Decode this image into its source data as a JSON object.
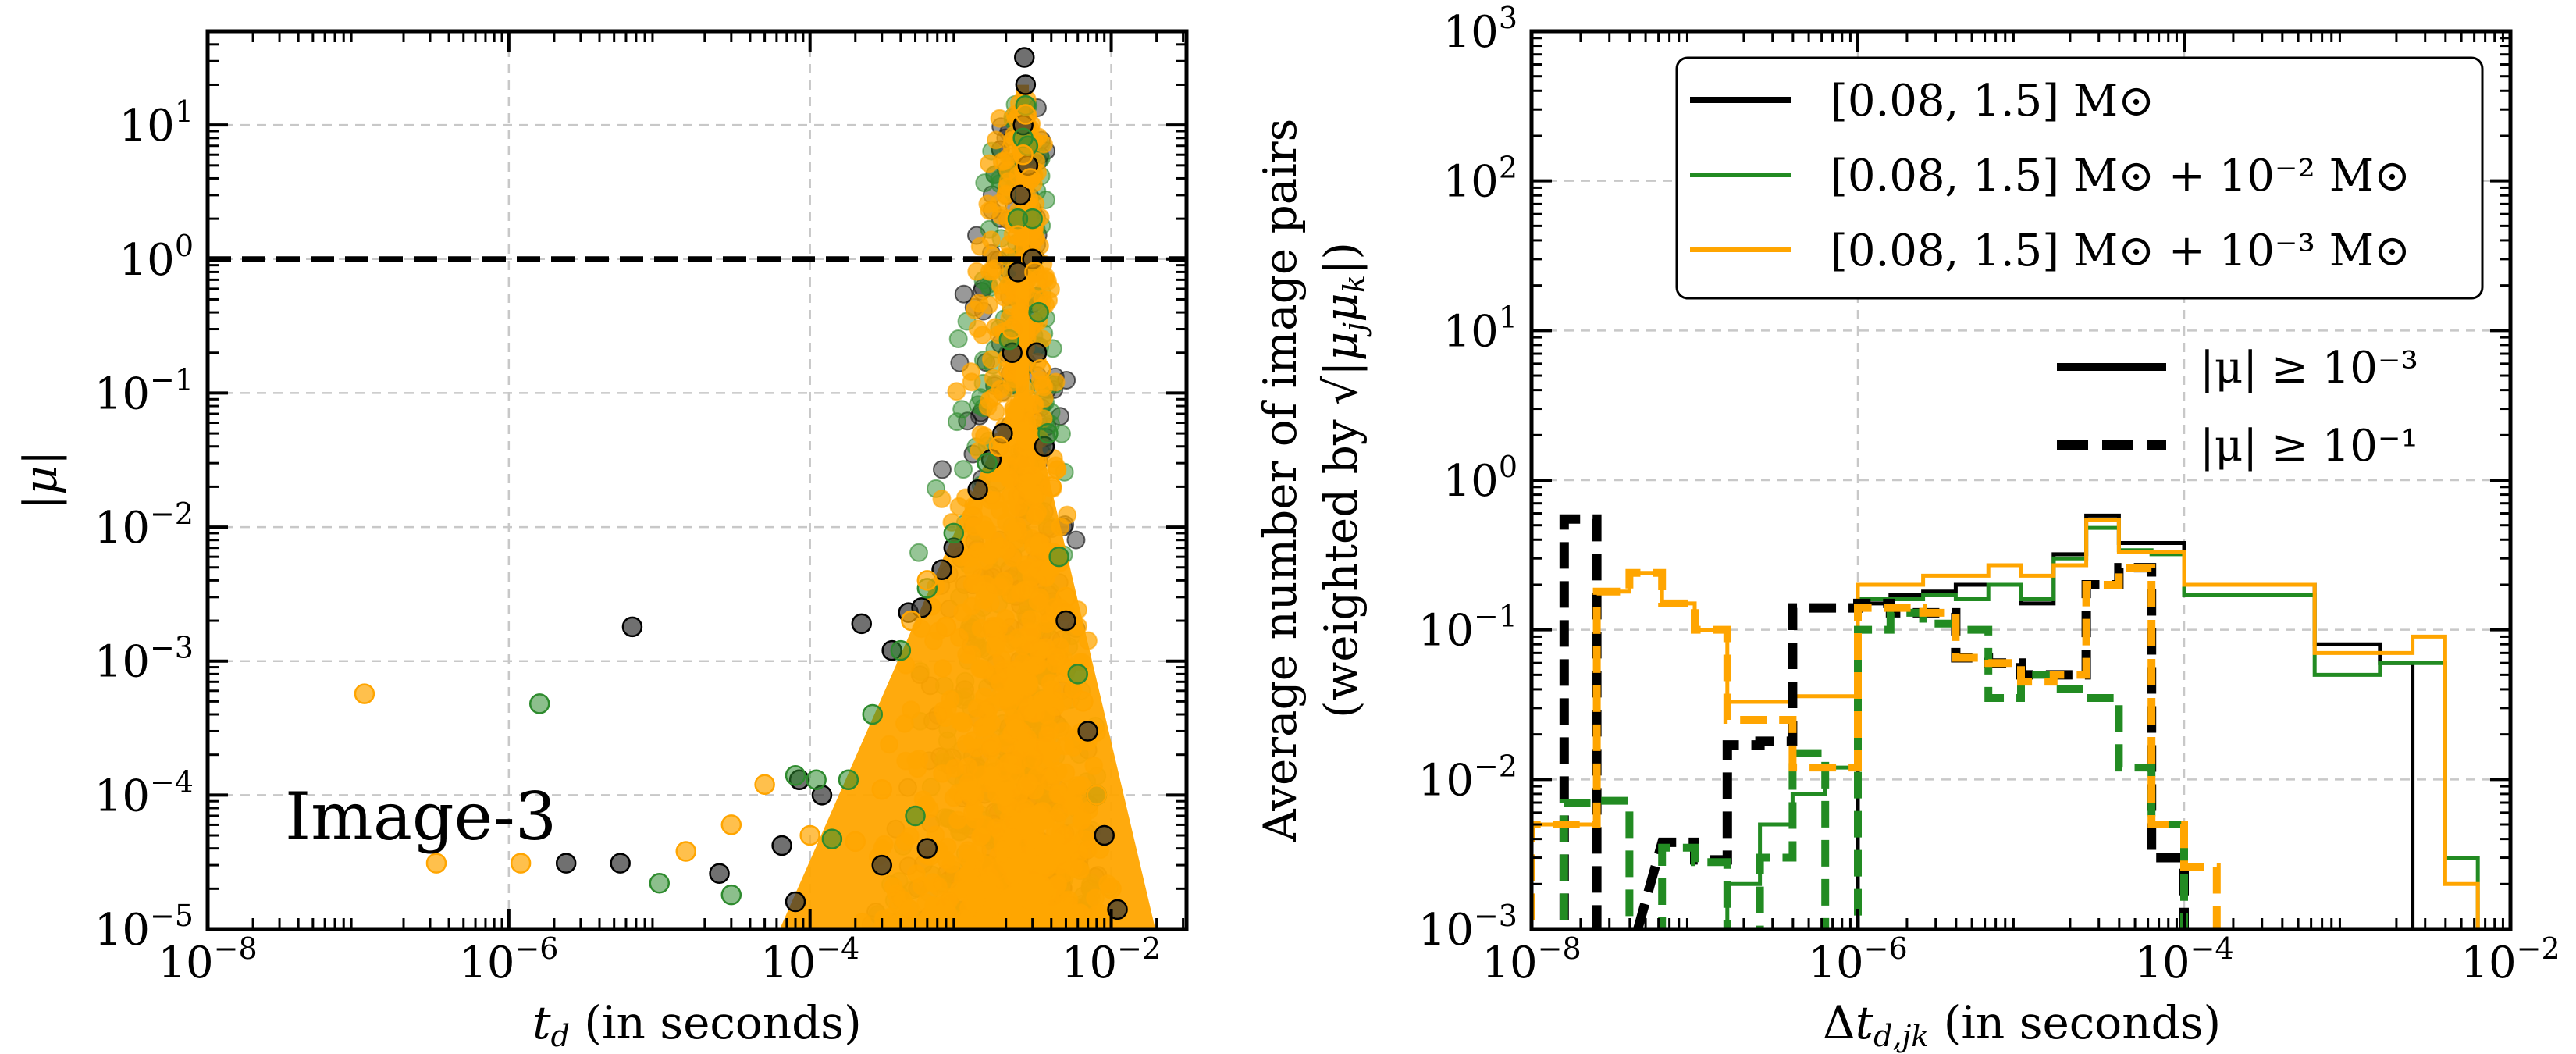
{
  "chart_data": [
    {
      "type": "scatter",
      "panel": "left",
      "xlabel": "t_d (in seconds)",
      "ylabel": "|μ|",
      "xscale": "log",
      "yscale": "log",
      "xlim_exp": [
        -8,
        -1.5
      ],
      "ylim_exp": [
        -5,
        1.7
      ],
      "xticks": [
        {
          "exp": -8,
          "base": "10",
          "pow": "−8"
        },
        {
          "exp": -6,
          "base": "10",
          "pow": "−6"
        },
        {
          "exp": -4,
          "base": "10",
          "pow": "−4"
        },
        {
          "exp": -2,
          "base": "10",
          "pow": "−2"
        }
      ],
      "yticks": [
        {
          "exp": -5,
          "base": "10",
          "pow": "−5"
        },
        {
          "exp": -4,
          "base": "10",
          "pow": "−4"
        },
        {
          "exp": -3,
          "base": "10",
          "pow": "−3"
        },
        {
          "exp": -2,
          "base": "10",
          "pow": "−2"
        },
        {
          "exp": -1,
          "base": "10",
          "pow": "−1"
        },
        {
          "exp": 0,
          "base": "10",
          "pow": "0"
        },
        {
          "exp": 1,
          "base": "10",
          "pow": "1"
        }
      ],
      "grid": true,
      "hline": {
        "y": 1,
        "style": "dashed",
        "color": "#000000"
      },
      "annotation": "Image-3",
      "series": [
        {
          "name": "[0.08, 1.5] M⊙",
          "color": "#333333",
          "points": [
            [
              6.6e-06,
              0.0018
            ],
            [
              2.4e-06,
              3.1e-05
            ],
            [
              5.5e-06,
              3.1e-05
            ],
            [
              2.5e-05,
              2.6e-05
            ],
            [
              6.5e-05,
              4.2e-05
            ],
            [
              8.5e-05,
              0.00013
            ],
            [
              0.00012,
              0.0001
            ],
            [
              8e-05,
              1.6e-05
            ],
            [
              0.00022,
              0.0019
            ],
            [
              0.00035,
              0.0012
            ],
            [
              0.00045,
              0.0023
            ],
            [
              0.00055,
              0.0025
            ],
            [
              0.00075,
              0.0048
            ],
            [
              0.0009,
              0.007
            ],
            [
              0.0013,
              0.019
            ],
            [
              0.0016,
              0.032
            ],
            [
              0.0019,
              0.05
            ],
            [
              0.0022,
              0.2
            ],
            [
              0.0024,
              0.8
            ],
            [
              0.0025,
              3
            ],
            [
              0.0026,
              10
            ],
            [
              0.00265,
              32
            ],
            [
              0.0027,
              20
            ],
            [
              0.0028,
              5
            ],
            [
              0.003,
              1
            ],
            [
              0.0032,
              0.2
            ],
            [
              0.0036,
              0.04
            ],
            [
              0.005,
              0.002
            ],
            [
              0.007,
              0.0003
            ],
            [
              0.009,
              5e-05
            ],
            [
              0.011,
              1.4e-05
            ],
            [
              0.0006,
              4e-05
            ],
            [
              0.0003,
              3e-05
            ]
          ]
        },
        {
          "name": "[0.08, 1.5] M⊙ + 10⁻² M⊙",
          "color": "#2e8b2e",
          "points": [
            [
              1.6e-06,
              0.00048
            ],
            [
              1e-05,
              2.2e-05
            ],
            [
              8e-05,
              0.00014
            ],
            [
              0.00011,
              0.00013
            ],
            [
              0.00014,
              4.7e-05
            ],
            [
              0.00018,
              0.00013
            ],
            [
              0.00026,
              0.0004
            ],
            [
              0.0004,
              0.0012
            ],
            [
              0.0006,
              0.0035
            ],
            [
              0.0009,
              0.009
            ],
            [
              0.0015,
              0.03
            ],
            [
              0.0021,
              0.25
            ],
            [
              0.0024,
              2
            ],
            [
              0.0026,
              8
            ],
            [
              0.0027,
              14
            ],
            [
              0.0028,
              7
            ],
            [
              0.003,
              2
            ],
            [
              0.0033,
              0.4
            ],
            [
              0.0038,
              0.05
            ],
            [
              0.0045,
              0.006
            ],
            [
              0.006,
              0.0008
            ],
            [
              0.008,
              0.0001
            ],
            [
              3e-05,
              1.8e-05
            ],
            [
              0.0005,
              7e-05
            ]
          ]
        },
        {
          "name": "[0.08, 1.5] M⊙ + 10⁻³ M⊙",
          "color": "#ffa500",
          "points": [
            [
              1.1e-07,
              0.00057
            ],
            [
              3.3e-07,
              3.1e-05
            ],
            [
              1.2e-06,
              3.1e-05
            ],
            [
              1.5e-05,
              3.8e-05
            ],
            [
              3e-05,
              6e-05
            ],
            [
              5e-05,
              0.00012
            ],
            [
              0.0001,
              5e-05
            ],
            [
              0.0002,
              4.5e-05
            ],
            [
              0.0003,
              0.00011
            ],
            [
              0.00047,
              0.002
            ],
            [
              0.0006,
              0.004
            ],
            [
              0.0008,
              0.0018
            ],
            [
              0.0012,
              0.012
            ],
            [
              0.0018,
              0.04
            ],
            [
              0.0022,
              0.3
            ],
            [
              0.0024,
              1.5
            ],
            [
              0.0026,
              6
            ],
            [
              0.0027,
              12
            ],
            [
              0.0029,
              4
            ],
            [
              0.0031,
              0.8
            ],
            [
              0.0034,
              0.15
            ],
            [
              0.004,
              0.02
            ],
            [
              0.005,
              0.003
            ],
            [
              0.0065,
              0.0005
            ],
            [
              0.008,
              0.0001
            ],
            [
              0.01,
              2e-05
            ]
          ]
        }
      ]
    },
    {
      "type": "histogram-step",
      "panel": "right",
      "xlabel": "Δt_{d,jk} (in seconds)",
      "ylabel_line1": "Average number of image pairs",
      "ylabel_line2": "(weighted by √|μ_j μ_k|)",
      "xscale": "log",
      "yscale": "log",
      "xlim_exp": [
        -8,
        -2
      ],
      "ylim_exp": [
        -3,
        3
      ],
      "xticks": [
        {
          "exp": -8,
          "base": "10",
          "pow": "−8"
        },
        {
          "exp": -6,
          "base": "10",
          "pow": "−6"
        },
        {
          "exp": -4,
          "base": "10",
          "pow": "−4"
        },
        {
          "exp": -2,
          "base": "10",
          "pow": "−2"
        }
      ],
      "yticks": [
        {
          "exp": -3,
          "base": "10",
          "pow": "−3"
        },
        {
          "exp": -2,
          "base": "10",
          "pow": "−2"
        },
        {
          "exp": -1,
          "base": "10",
          "pow": "−1"
        },
        {
          "exp": 0,
          "base": "10",
          "pow": "0"
        },
        {
          "exp": 1,
          "base": "10",
          "pow": "1"
        },
        {
          "exp": 2,
          "base": "10",
          "pow": "2"
        },
        {
          "exp": 3,
          "base": "10",
          "pow": "3"
        }
      ],
      "grid": true,
      "bin_edges_exp": [
        -8.0,
        -7.8,
        -7.6,
        -7.4,
        -7.2,
        -7.0,
        -6.8,
        -6.6,
        -6.4,
        -6.2,
        -6.0,
        -5.8,
        -5.6,
        -5.4,
        -5.2,
        -5.0,
        -4.8,
        -4.6,
        -4.4,
        -4.2,
        -4.0,
        -3.8,
        -3.6,
        -3.4,
        -3.2,
        -3.0,
        -2.8,
        -2.6,
        -2.4,
        -2.2,
        -2.0
      ],
      "legend_colors": [
        {
          "label_main": "[0.08, 1.5] M⊙",
          "label_extra": "",
          "color": "#000000"
        },
        {
          "label_main": "[0.08, 1.5] M⊙",
          "label_extra": " + 10⁻² M⊙",
          "color": "#228b22"
        },
        {
          "label_main": "[0.08, 1.5] M⊙",
          "label_extra": " + 10⁻³ M⊙",
          "color": "#ffa500"
        }
      ],
      "legend_styles": [
        {
          "label": "|μ| ≥ 10⁻³",
          "style": "solid"
        },
        {
          "label": "|μ| ≥ 10⁻¹",
          "style": "dashed"
        }
      ],
      "series": [
        {
          "name": "black |μ|≥1e-3",
          "color": "#000000",
          "style": "solid",
          "width": 5,
          "values": [
            null,
            null,
            null,
            null,
            null,
            null,
            null,
            null,
            null,
            null,
            0.15,
            0.17,
            0.18,
            0.2,
            0.2,
            0.15,
            0.32,
            0.58,
            0.38,
            0.38,
            0.2,
            0.2,
            0.2,
            0.2,
            0.08,
            0.08,
            0.06,
            null,
            null,
            null
          ]
        },
        {
          "name": "green |μ|≥1e-3",
          "color": "#228b22",
          "style": "solid",
          "width": 5,
          "values": [
            null,
            null,
            null,
            null,
            null,
            null,
            0.002,
            0.005,
            0.008,
            0.012,
            0.16,
            0.16,
            0.17,
            0.16,
            0.2,
            0.16,
            0.3,
            0.48,
            0.34,
            0.32,
            0.17,
            0.17,
            0.17,
            0.17,
            0.05,
            0.05,
            0.06,
            0.06,
            0.003,
            null
          ]
        },
        {
          "name": "orange |μ|≥1e-3",
          "color": "#ffa500",
          "style": "solid",
          "width": 5,
          "values": [
            0.005,
            0.005,
            0.18,
            0.24,
            0.15,
            0.1,
            0.033,
            0.033,
            0.036,
            0.036,
            0.2,
            0.2,
            0.23,
            0.23,
            0.27,
            0.23,
            0.27,
            0.54,
            0.33,
            0.33,
            0.2,
            0.2,
            0.2,
            0.2,
            0.07,
            0.07,
            0.07,
            0.09,
            0.002,
            null
          ]
        },
        {
          "name": "black |μ|≥1e-1",
          "color": "#000000",
          "style": "dashed",
          "width": 12,
          "values": [
            null,
            0.55,
            null,
            null,
            0.0038,
            0.0029,
            0.017,
            0.018,
            0.14,
            0.14,
            0.15,
            0.13,
            0.13,
            0.065,
            0.06,
            0.05,
            0.05,
            0.2,
            0.26,
            0.003,
            null,
            null,
            null,
            null,
            null,
            null,
            null,
            null,
            null,
            null
          ]
        },
        {
          "name": "green |μ|≥1e-1",
          "color": "#228b22",
          "style": "dashed",
          "width": 10,
          "values": [
            null,
            0.007,
            0.0072,
            null,
            0.0035,
            0.0028,
            null,
            0.003,
            0.015,
            null,
            0.1,
            0.13,
            0.11,
            0.1,
            0.035,
            0.05,
            0.04,
            0.035,
            0.012,
            0.005,
            null,
            null,
            null,
            null,
            null,
            null,
            null,
            null,
            null,
            null
          ]
        },
        {
          "name": "orange |μ|≥1e-1",
          "color": "#ffa500",
          "style": "dashed",
          "width": 10,
          "values": [
            0.005,
            0.005,
            0.18,
            0.24,
            0.15,
            0.1,
            0.025,
            0.025,
            0.012,
            0.012,
            0.14,
            0.14,
            0.13,
            0.065,
            0.06,
            0.045,
            0.05,
            0.2,
            0.26,
            0.005,
            0.0026,
            null,
            null,
            null,
            null,
            null,
            null,
            null,
            null,
            null
          ]
        }
      ]
    }
  ]
}
